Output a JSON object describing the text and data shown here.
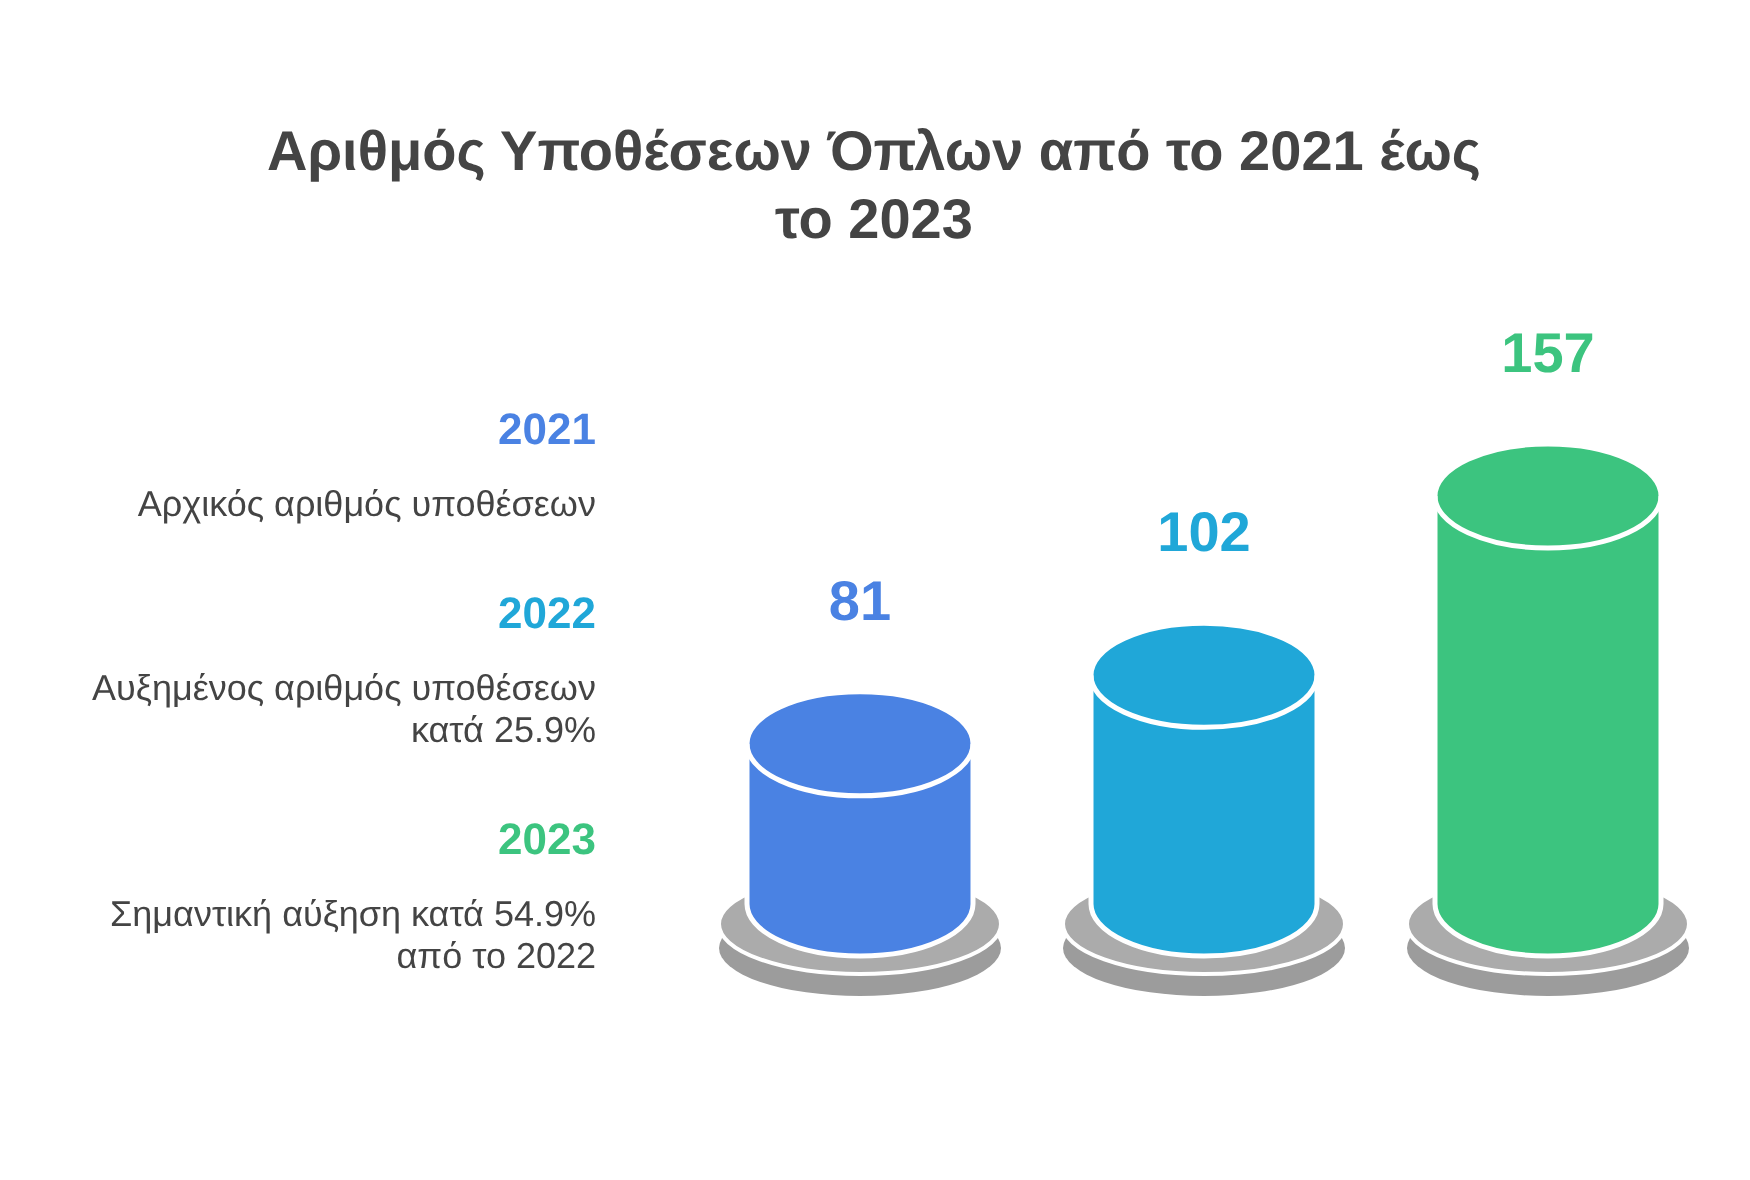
{
  "chart_data": {
    "type": "bar",
    "title": "Αριθμός Υποθέσεων Όπλων από το 2021 έως το 2023",
    "categories": [
      null,
      null,
      null
    ],
    "values": [
      81,
      102,
      157
    ],
    "colors": [
      "#4a82e3",
      "#20a7d8",
      "#3cc47f"
    ],
    "data_labels": true,
    "annotations": [
      "2021",
      "Αρχικός αριθμός υποθέσεων",
      "2022",
      "Αυξημένος αριθμός υποθέσεων κατά 25.9%",
      "2023",
      "Σημαντική αύξηση κατά 54.9% από το 2022"
    ]
  }
}
